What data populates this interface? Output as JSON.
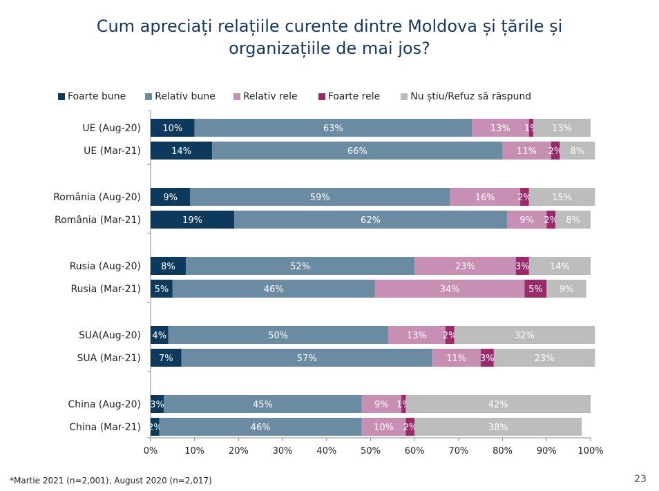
{
  "title_line1": "Cum apreciați relațiile curente dintre Moldova și țările și",
  "title_line2": "organizațiile de mai jos?",
  "footnote": "*Martie 2021 (n=2,001), August 2020 (n=2,017)",
  "page_number": "23",
  "colors": [
    "#0d3a5c",
    "#6b8ba3",
    "#c78fb4",
    "#9b2a6d",
    "#bcbcbc"
  ],
  "chart_data": {
    "type": "bar",
    "orientation": "horizontal",
    "stacked": true,
    "percent": true,
    "categories": [
      "UE (Aug-20)",
      "UE (Mar-21)",
      "România (Aug-20)",
      "România (Mar-21)",
      "Rusia (Aug-20)",
      "Rusia (Mar-21)",
      "SUA(Aug-20)",
      "SUA (Mar-21)",
      "China (Aug-20)",
      "China (Mar-21)"
    ],
    "series": [
      {
        "name": "Foarte bune",
        "color": "#0d3a5c",
        "values": [
          10,
          14,
          9,
          19,
          8,
          5,
          4,
          7,
          3,
          2
        ]
      },
      {
        "name": "Relativ bune",
        "color": "#6b8ba3",
        "values": [
          63,
          66,
          59,
          62,
          52,
          46,
          50,
          57,
          45,
          46
        ]
      },
      {
        "name": "Relativ rele",
        "color": "#c78fb4",
        "values": [
          13,
          11,
          16,
          9,
          23,
          34,
          13,
          11,
          9,
          10
        ]
      },
      {
        "name": "Foarte rele",
        "color": "#9b2a6d",
        "values": [
          1,
          2,
          2,
          2,
          3,
          5,
          2,
          3,
          1,
          2
        ]
      },
      {
        "name": "Nu știu/Refuz să răspund",
        "color": "#bcbcbc",
        "values": [
          13,
          8,
          15,
          8,
          14,
          9,
          32,
          23,
          42,
          38
        ]
      }
    ],
    "xlim": [
      0,
      100
    ],
    "xticks": [
      "0%",
      "10%",
      "20%",
      "30%",
      "40%",
      "50%",
      "60%",
      "70%",
      "80%",
      "90%",
      "100%"
    ],
    "legend_position": "top",
    "grid": false
  }
}
